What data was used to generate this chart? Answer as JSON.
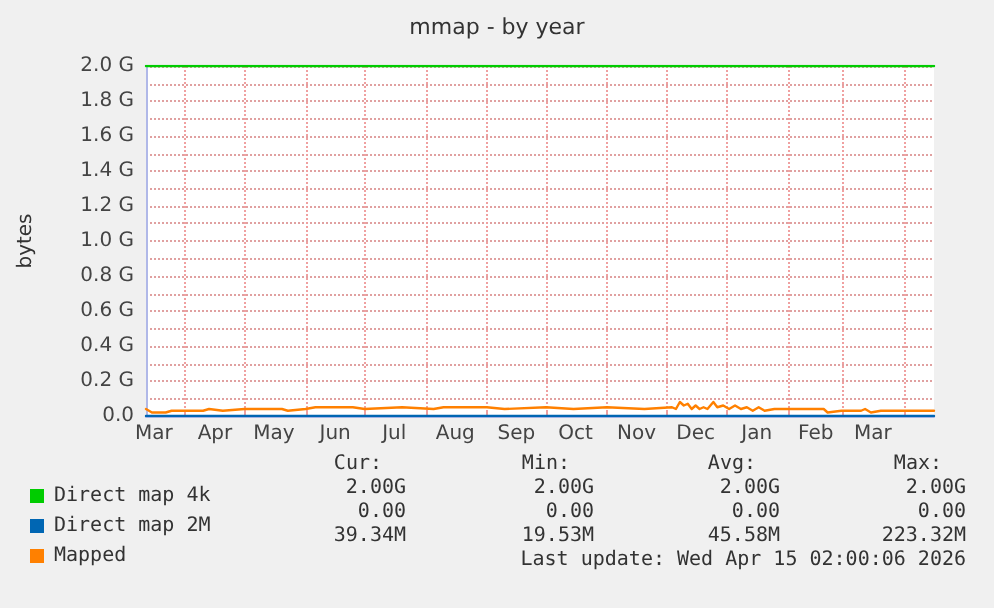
{
  "chart_data": {
    "type": "line",
    "title": "mmap - by year",
    "ylabel": "bytes",
    "x": [
      "2025-03-12",
      "2025-03-15",
      "2025-03-22",
      "2025-03-25",
      "2025-04-10",
      "2025-04-13",
      "2025-04-20",
      "2025-05-01",
      "2025-05-20",
      "2025-05-23",
      "2025-06-01",
      "2025-06-06",
      "2025-06-25",
      "2025-07-01",
      "2025-07-20",
      "2025-08-05",
      "2025-08-10",
      "2025-09-01",
      "2025-09-10",
      "2025-10-01",
      "2025-10-15",
      "2025-11-01",
      "2025-11-20",
      "2025-12-04",
      "2025-12-06",
      "2025-12-08",
      "2025-12-10",
      "2025-12-12",
      "2025-12-14",
      "2025-12-16",
      "2025-12-18",
      "2025-12-20",
      "2025-12-22",
      "2025-12-25",
      "2025-12-27",
      "2025-12-30",
      "2026-01-02",
      "2026-01-05",
      "2026-01-08",
      "2026-01-11",
      "2026-01-14",
      "2026-01-17",
      "2026-01-20",
      "2026-01-25",
      "2026-02-01",
      "2026-02-19",
      "2026-02-21",
      "2026-02-28",
      "2026-03-10",
      "2026-03-12",
      "2026-03-15",
      "2026-03-20",
      "2026-04-16"
    ],
    "series": [
      {
        "name": "Direct map 4k",
        "color": "#00cc00",
        "values": [
          2,
          2,
          2,
          2,
          2,
          2,
          2,
          2,
          2,
          2,
          2,
          2,
          2,
          2,
          2,
          2,
          2,
          2,
          2,
          2,
          2,
          2,
          2,
          2,
          2,
          2,
          2,
          2,
          2,
          2,
          2,
          2,
          2,
          2,
          2,
          2,
          2,
          2,
          2,
          2,
          2,
          2,
          2,
          2,
          2,
          2,
          2,
          2,
          2,
          2,
          2,
          2,
          2
        ]
      },
      {
        "name": "Direct map 2M",
        "color": "#0066b3",
        "values": [
          0,
          0,
          0,
          0,
          0,
          0,
          0,
          0,
          0,
          0,
          0,
          0,
          0,
          0,
          0,
          0,
          0,
          0,
          0,
          0,
          0,
          0,
          0,
          0,
          0,
          0,
          0,
          0,
          0,
          0,
          0,
          0,
          0,
          0,
          0,
          0,
          0,
          0,
          0,
          0,
          0,
          0,
          0,
          0,
          0,
          0,
          0,
          0,
          0,
          0,
          0,
          0,
          0
        ]
      },
      {
        "name": "Mapped",
        "color": "#ff8000",
        "values": [
          0.04,
          0.02,
          0.02,
          0.03,
          0.03,
          0.04,
          0.03,
          0.04,
          0.04,
          0.03,
          0.04,
          0.05,
          0.05,
          0.04,
          0.05,
          0.04,
          0.05,
          0.05,
          0.04,
          0.05,
          0.04,
          0.05,
          0.04,
          0.05,
          0.04,
          0.08,
          0.06,
          0.07,
          0.04,
          0.06,
          0.04,
          0.05,
          0.04,
          0.08,
          0.05,
          0.06,
          0.04,
          0.06,
          0.04,
          0.05,
          0.03,
          0.05,
          0.03,
          0.04,
          0.04,
          0.04,
          0.02,
          0.03,
          0.03,
          0.04,
          0.02,
          0.03,
          0.03
        ]
      }
    ],
    "xlim": [
      "2025-03-12",
      "2026-04-16"
    ],
    "xticks": [
      {
        "value": "2025-03-16",
        "label": "Mar"
      },
      {
        "value": "2025-04-01",
        "label": null
      },
      {
        "value": "2025-04-16",
        "label": "Apr"
      },
      {
        "value": "2025-05-01",
        "label": null
      },
      {
        "value": "2025-05-16",
        "label": "May"
      },
      {
        "value": "2025-06-01",
        "label": null
      },
      {
        "value": "2025-06-16",
        "label": "Jun"
      },
      {
        "value": "2025-07-01",
        "label": null
      },
      {
        "value": "2025-07-16",
        "label": "Jul"
      },
      {
        "value": "2025-08-01",
        "label": null
      },
      {
        "value": "2025-08-16",
        "label": "Aug"
      },
      {
        "value": "2025-09-01",
        "label": null
      },
      {
        "value": "2025-09-16",
        "label": "Sep"
      },
      {
        "value": "2025-10-01",
        "label": null
      },
      {
        "value": "2025-10-16",
        "label": "Oct"
      },
      {
        "value": "2025-11-01",
        "label": null
      },
      {
        "value": "2025-11-16",
        "label": "Nov"
      },
      {
        "value": "2025-12-01",
        "label": null
      },
      {
        "value": "2025-12-16",
        "label": "Dec"
      },
      {
        "value": "2026-01-01",
        "label": null
      },
      {
        "value": "2026-01-16",
        "label": "Jan"
      },
      {
        "value": "2026-02-01",
        "label": null
      },
      {
        "value": "2026-02-15",
        "label": "Feb"
      },
      {
        "value": "2026-03-01",
        "label": null
      },
      {
        "value": "2026-03-16",
        "label": "Mar"
      },
      {
        "value": "2026-04-01",
        "label": null
      }
    ],
    "ylim": [
      0,
      2
    ],
    "yticks": [
      {
        "value": 0,
        "label": "0.0"
      },
      {
        "value": 0.1,
        "label": null
      },
      {
        "value": 0.2,
        "label": "0.2 G"
      },
      {
        "value": 0.3,
        "label": null
      },
      {
        "value": 0.4,
        "label": "0.4 G"
      },
      {
        "value": 0.5,
        "label": null
      },
      {
        "value": 0.6,
        "label": "0.6 G"
      },
      {
        "value": 0.7,
        "label": null
      },
      {
        "value": 0.8,
        "label": "0.8 G"
      },
      {
        "value": 0.9,
        "label": null
      },
      {
        "value": 1,
        "label": "1.0 G"
      },
      {
        "value": 1.1,
        "label": null
      },
      {
        "value": 1.2,
        "label": "1.2 G"
      },
      {
        "value": 1.3,
        "label": null
      },
      {
        "value": 1.4,
        "label": "1.4 G"
      },
      {
        "value": 1.5,
        "label": null
      },
      {
        "value": 1.6,
        "label": "1.6 G"
      },
      {
        "value": 1.7,
        "label": null
      },
      {
        "value": 1.8,
        "label": "1.8 G"
      },
      {
        "value": 1.9,
        "label": null
      },
      {
        "value": 2,
        "label": "2.0 G"
      }
    ],
    "grid": true,
    "legend": "bottom left",
    "marker": "none",
    "line_style": "solid",
    "annotations": [
      "Cur:",
      "Min:",
      "Avg:",
      "Max:",
      "2.00G",
      "2.00G",
      "2.00G",
      "2.00G",
      "0.00",
      "0.00",
      "0.00",
      "0.00",
      "39.34M",
      "19.53M",
      "45.58M",
      "223.32M",
      "Last update: Wed Apr 15 02:00:06 2026"
    ]
  }
}
